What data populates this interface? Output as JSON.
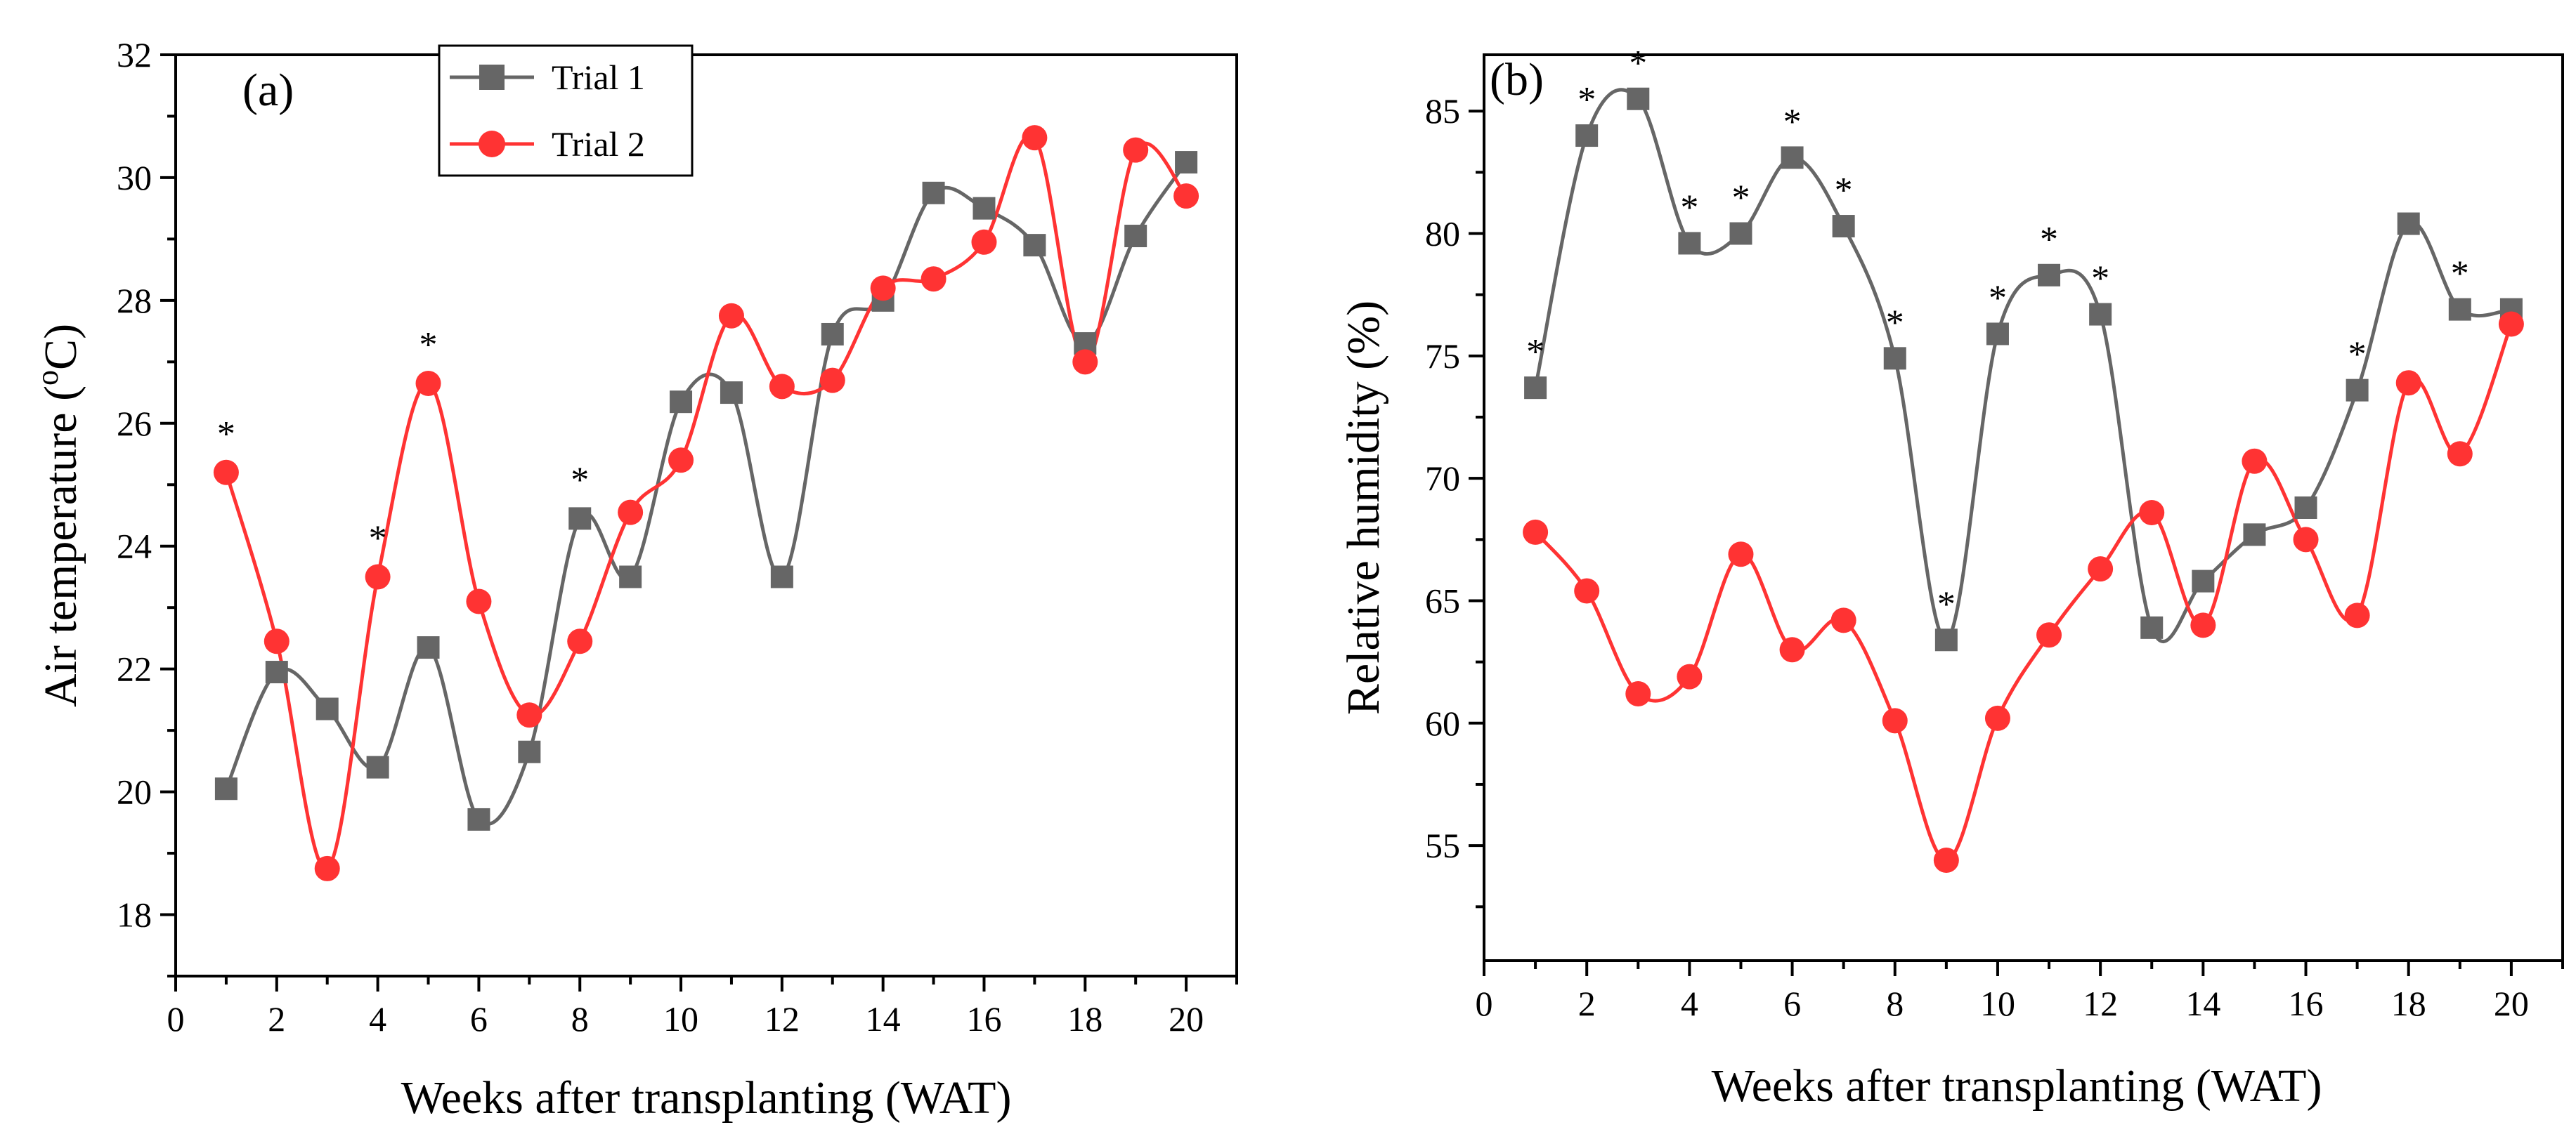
{
  "colors": {
    "trial1": "#666666",
    "trial2": "#ff3333",
    "axis": "#000000"
  },
  "chart_data": [
    {
      "type": "line",
      "panel_label": "(a)",
      "xlabel": "Weeks after transplanting (WAT)",
      "ylabel_main": "Air temperature (",
      "ylabel_sup": "o",
      "ylabel_tail": "C)",
      "xlim": [
        0,
        21
      ],
      "ylim": [
        17,
        32
      ],
      "xticks": [
        0,
        2,
        4,
        6,
        8,
        10,
        12,
        14,
        16,
        18,
        20
      ],
      "yticks": [
        18,
        20,
        22,
        24,
        26,
        28,
        30,
        32
      ],
      "legend": {
        "position": "top-center",
        "entries": [
          "Trial 1",
          "Trial 2"
        ]
      },
      "series": [
        {
          "name": "Trial 1",
          "marker": "square",
          "x": [
            1,
            2,
            3,
            4,
            5,
            6,
            7,
            8,
            9,
            10,
            11,
            12,
            13,
            14,
            15,
            16,
            17,
            18,
            19,
            20
          ],
          "y": [
            20.05,
            21.95,
            21.35,
            20.4,
            22.35,
            19.55,
            20.65,
            24.45,
            23.5,
            26.35,
            26.5,
            23.5,
            27.45,
            28.0,
            29.75,
            29.5,
            28.9,
            27.3,
            29.05,
            30.25
          ]
        },
        {
          "name": "Trial 2",
          "marker": "circle",
          "x": [
            1,
            2,
            3,
            4,
            5,
            6,
            7,
            8,
            9,
            10,
            11,
            12,
            13,
            14,
            15,
            16,
            17,
            18,
            19,
            20
          ],
          "y": [
            25.2,
            22.45,
            18.75,
            23.5,
            26.65,
            23.1,
            21.25,
            22.45,
            24.55,
            25.4,
            27.75,
            26.6,
            26.7,
            28.2,
            28.35,
            28.95,
            30.65,
            27.0,
            30.45,
            29.7
          ]
        }
      ],
      "annotations": [
        {
          "x": 1,
          "y": 25.2,
          "text": "*"
        },
        {
          "x": 4,
          "y": 23.5,
          "text": "*"
        },
        {
          "x": 5,
          "y": 26.65,
          "text": "*"
        },
        {
          "x": 8,
          "y": 24.45,
          "text": "*"
        }
      ]
    },
    {
      "type": "line",
      "panel_label": "(b)",
      "xlabel": "Weeks after transplanting (WAT)",
      "ylabel": "Relative humidity (%)",
      "xlim": [
        0,
        21
      ],
      "ylim": [
        50.3,
        87.3
      ],
      "xticks": [
        0,
        2,
        4,
        6,
        8,
        10,
        12,
        14,
        16,
        18,
        20
      ],
      "yticks": [
        55,
        60,
        65,
        70,
        75,
        80,
        85
      ],
      "series": [
        {
          "name": "Trial 1",
          "marker": "square",
          "x": [
            1,
            2,
            3,
            4,
            5,
            6,
            7,
            8,
            9,
            10,
            11,
            12,
            13,
            14,
            15,
            16,
            17,
            18,
            19,
            20
          ],
          "y": [
            73.7,
            84.0,
            85.5,
            79.6,
            80.0,
            83.1,
            80.3,
            74.9,
            63.4,
            75.9,
            78.3,
            76.7,
            63.9,
            65.8,
            67.7,
            68.8,
            73.6,
            80.4,
            76.9,
            76.9
          ]
        },
        {
          "name": "Trial 2",
          "marker": "circle",
          "x": [
            1,
            2,
            3,
            4,
            5,
            6,
            7,
            8,
            9,
            10,
            11,
            12,
            13,
            14,
            15,
            16,
            17,
            18,
            19,
            20
          ],
          "y": [
            67.8,
            65.4,
            61.2,
            61.9,
            66.9,
            63.0,
            64.2,
            60.1,
            54.4,
            60.2,
            63.6,
            66.3,
            68.6,
            64.0,
            70.7,
            67.5,
            64.4,
            73.9,
            71.0,
            76.3
          ]
        }
      ],
      "annotations": [
        {
          "x": 1,
          "y": 73.7,
          "text": "*"
        },
        {
          "x": 2,
          "y": 84.0,
          "text": "*"
        },
        {
          "x": 3,
          "y": 85.5,
          "text": "*"
        },
        {
          "x": 4,
          "y": 79.6,
          "text": "*"
        },
        {
          "x": 5,
          "y": 80.0,
          "text": "*"
        },
        {
          "x": 6,
          "y": 83.1,
          "text": "*"
        },
        {
          "x": 7,
          "y": 80.3,
          "text": "*"
        },
        {
          "x": 8,
          "y": 74.9,
          "text": "*"
        },
        {
          "x": 9,
          "y": 63.4,
          "text": "*"
        },
        {
          "x": 10,
          "y": 75.9,
          "text": "*"
        },
        {
          "x": 11,
          "y": 78.3,
          "text": "*"
        },
        {
          "x": 12,
          "y": 76.7,
          "text": "*"
        },
        {
          "x": 17,
          "y": 73.6,
          "text": "*"
        },
        {
          "x": 19,
          "y": 76.9,
          "text": "*"
        }
      ]
    }
  ]
}
